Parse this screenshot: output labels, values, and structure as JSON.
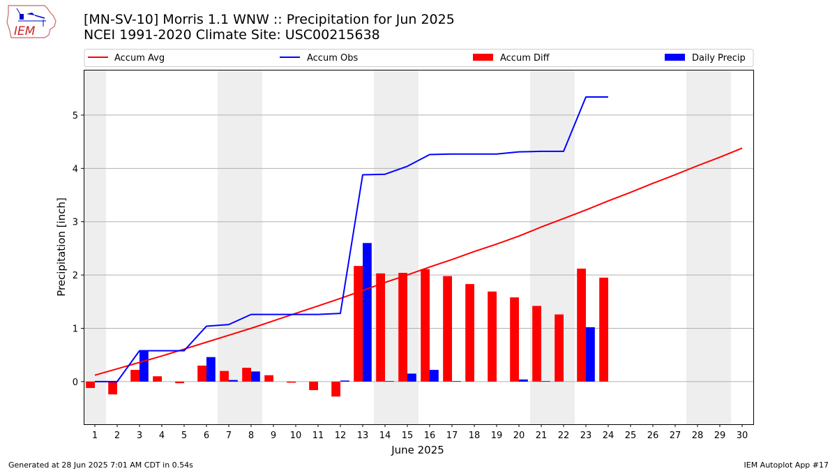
{
  "header": {
    "logo_text": "IEM",
    "title_line1": "[MN-SV-10] Morris 1.1 WNW :: Precipitation for Jun 2025",
    "title_line2": "NCEI 1991-2020 Climate Site: USC00215638"
  },
  "footer": {
    "generated": "Generated at 28 Jun 2025 7:01 AM CDT in 0.54s",
    "app": "IEM Autoplot App #17"
  },
  "colors": {
    "accum_avg": "#ff0000",
    "accum_obs": "#0000ff",
    "accum_diff": "#ff0000",
    "daily_precip": "#0000ff",
    "weekend_shading": "#eeeeee",
    "grid": "#b0b0b0"
  },
  "chart_data": {
    "type": "bar",
    "xlabel": "June 2025",
    "ylabel": "Precipitation [inch]",
    "xlim": [
      0.5,
      30.5
    ],
    "ylim": [
      -0.8,
      5.85
    ],
    "yticks": [
      0,
      1,
      2,
      3,
      4,
      5
    ],
    "days": [
      1,
      2,
      3,
      4,
      5,
      6,
      7,
      8,
      9,
      10,
      11,
      12,
      13,
      14,
      15,
      16,
      17,
      18,
      19,
      20,
      21,
      22,
      23,
      24,
      25,
      26,
      27,
      28,
      29,
      30
    ],
    "weekend_shaded_days": [
      1,
      7,
      8,
      14,
      15,
      21,
      22,
      28,
      29
    ],
    "grid": "horizontal",
    "legend_position": "top",
    "legend": [
      "Accum Avg",
      "Accum Obs",
      "Accum Diff",
      "Daily Precip"
    ],
    "series": [
      {
        "name": "Accum Avg",
        "kind": "line",
        "x": [
          1,
          2,
          3,
          4,
          5,
          6,
          7,
          8,
          9,
          10,
          11,
          12,
          13,
          14,
          15,
          16,
          17,
          18,
          19,
          20,
          21,
          22,
          23,
          24,
          25,
          26,
          27,
          28,
          29,
          30
        ],
        "values": [
          0.12,
          0.24,
          0.36,
          0.48,
          0.61,
          0.74,
          0.87,
          1.0,
          1.14,
          1.28,
          1.42,
          1.56,
          1.71,
          1.86,
          2.0,
          2.15,
          2.29,
          2.44,
          2.58,
          2.73,
          2.9,
          3.06,
          3.22,
          3.39,
          3.55,
          3.72,
          3.88,
          4.05,
          4.21,
          4.38
        ]
      },
      {
        "name": "Accum Obs",
        "kind": "line",
        "x": [
          1,
          2,
          3,
          4,
          5,
          6,
          7,
          8,
          9,
          10,
          11,
          12,
          13,
          14,
          15,
          16,
          17,
          18,
          19,
          20,
          21,
          22,
          23,
          24
        ],
        "values": [
          0.0,
          0.0,
          0.58,
          0.58,
          0.58,
          1.04,
          1.07,
          1.26,
          1.26,
          1.26,
          1.26,
          1.28,
          3.88,
          3.89,
          4.04,
          4.26,
          4.27,
          4.27,
          4.27,
          4.31,
          4.32,
          4.32,
          5.34,
          5.34
        ]
      },
      {
        "name": "Accum Diff",
        "kind": "bar",
        "x": [
          1,
          2,
          3,
          4,
          5,
          6,
          7,
          8,
          9,
          10,
          11,
          12,
          13,
          14,
          15,
          16,
          17,
          18,
          19,
          20,
          21,
          22,
          23,
          24
        ],
        "values": [
          -0.12,
          -0.24,
          0.22,
          0.1,
          -0.03,
          0.3,
          0.2,
          0.26,
          0.12,
          -0.02,
          -0.16,
          -0.28,
          2.17,
          2.03,
          2.04,
          2.11,
          1.98,
          1.83,
          1.69,
          1.58,
          1.42,
          1.26,
          2.12,
          1.95
        ]
      },
      {
        "name": "Daily Precip",
        "kind": "bar",
        "x": [
          1,
          2,
          3,
          4,
          5,
          6,
          7,
          8,
          9,
          10,
          11,
          12,
          13,
          14,
          15,
          16,
          17,
          18,
          19,
          20,
          21,
          22,
          23,
          24
        ],
        "values": [
          0,
          0,
          0.58,
          0,
          0,
          0.46,
          0.03,
          0.19,
          0,
          0,
          0,
          0.02,
          2.6,
          0.01,
          0.15,
          0.22,
          0.01,
          0,
          0,
          0.04,
          0.01,
          0,
          1.02,
          0
        ]
      }
    ]
  }
}
